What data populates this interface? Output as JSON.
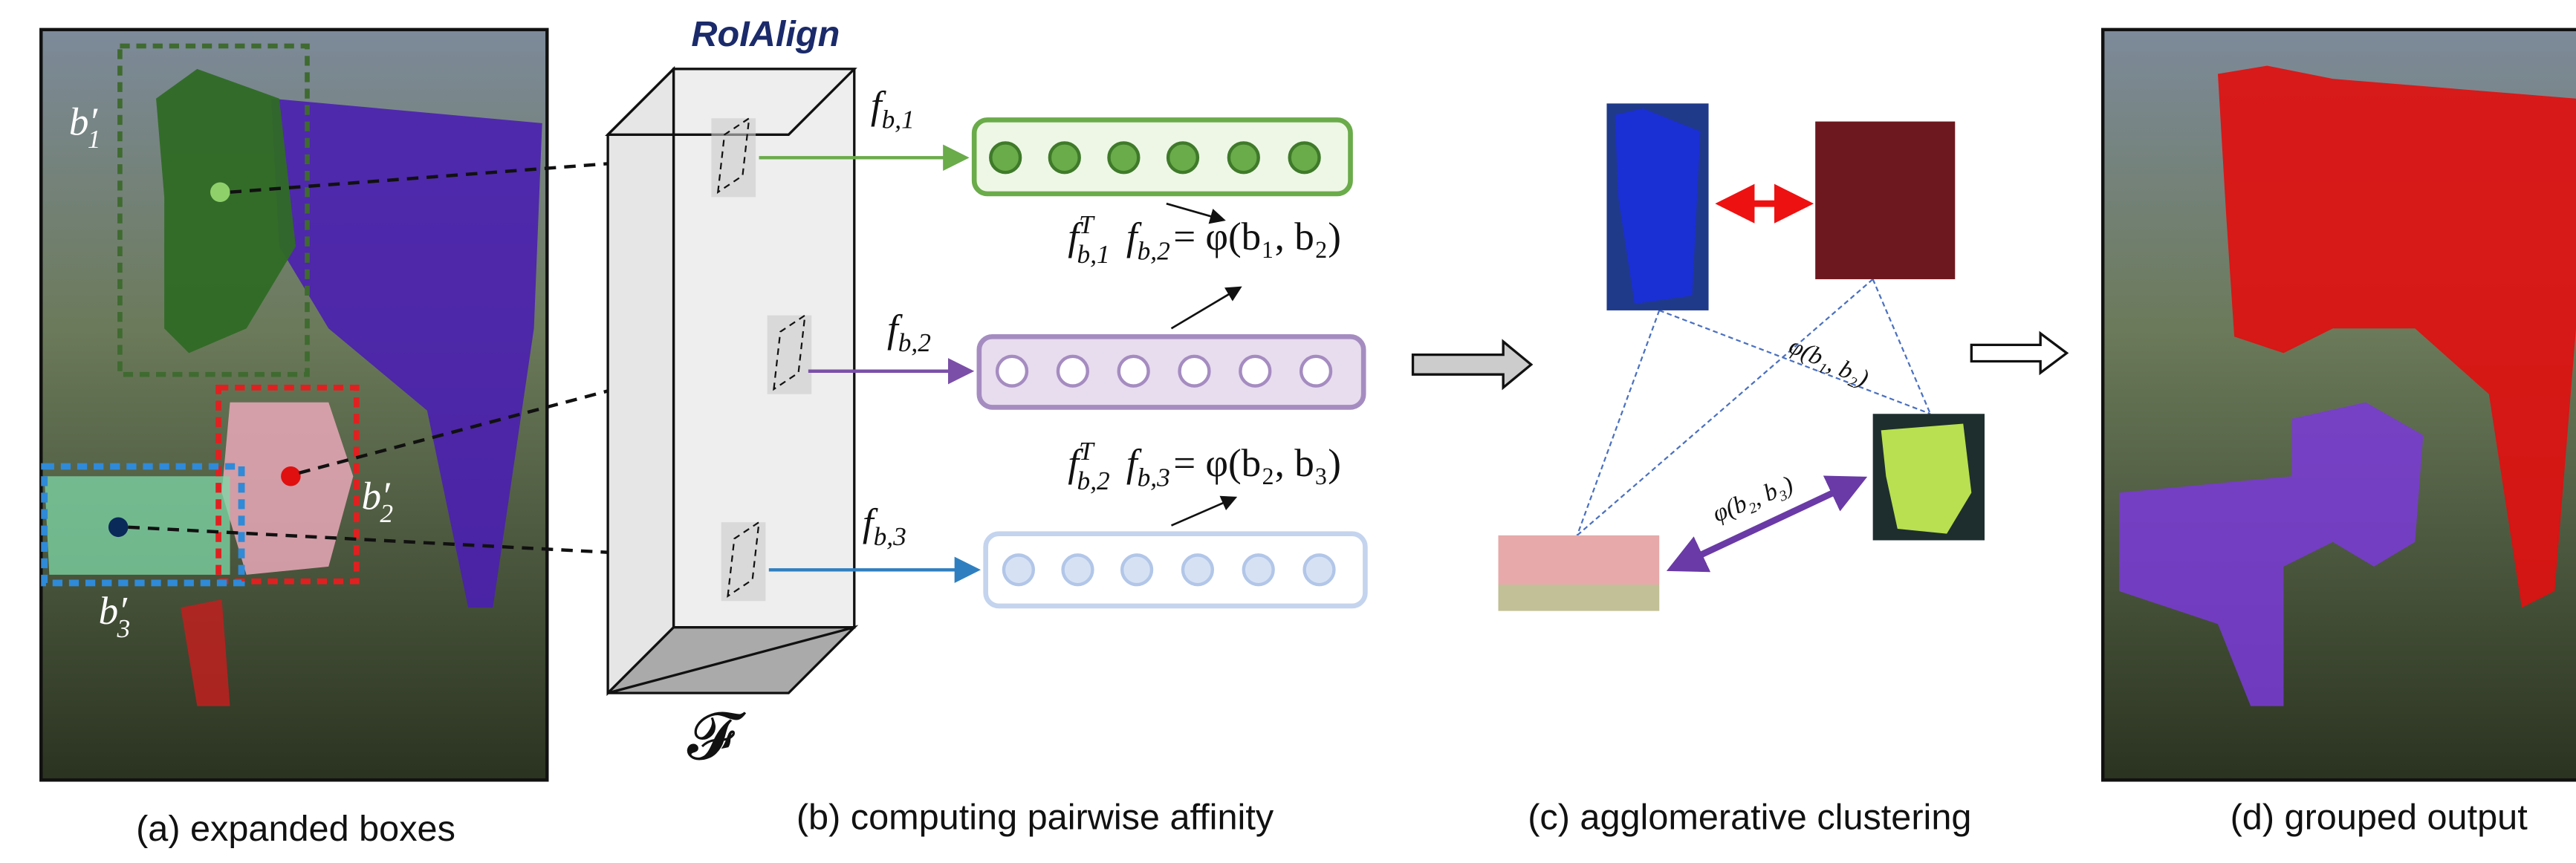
{
  "roialign_label": "RoIAlign",
  "feature_map_label": "𝓕",
  "box_labels": [
    {
      "base": "b",
      "prime": "′",
      "sub": "1"
    },
    {
      "base": "b",
      "prime": "′",
      "sub": "2"
    },
    {
      "base": "b",
      "prime": "′",
      "sub": "3"
    }
  ],
  "feature_labels": [
    {
      "base": "f",
      "sub": "b,1"
    },
    {
      "base": "f",
      "sub": "b,2"
    },
    {
      "base": "f",
      "sub": "b,3"
    }
  ],
  "equations": [
    {
      "a": {
        "base": "f",
        "sup": "T",
        "sub": "b,1"
      },
      "b": {
        "base": "f",
        "sub": "b,2"
      },
      "rhs": "= φ(b₁, b₂)"
    },
    {
      "a": {
        "base": "f",
        "sup": "T",
        "sub": "b,2"
      },
      "b": {
        "base": "f",
        "sub": "b,3"
      },
      "rhs": "= φ(b₂, b₃)"
    }
  ],
  "cluster_edge_labels": [
    "φ(b₁, b₂)",
    "φ(b₂, b₃)"
  ],
  "panel_captions": [
    "(a) expanded boxes",
    "(b) computing pairwise affinity",
    "(c) agglomerative clustering",
    "(d) grouped output"
  ]
}
